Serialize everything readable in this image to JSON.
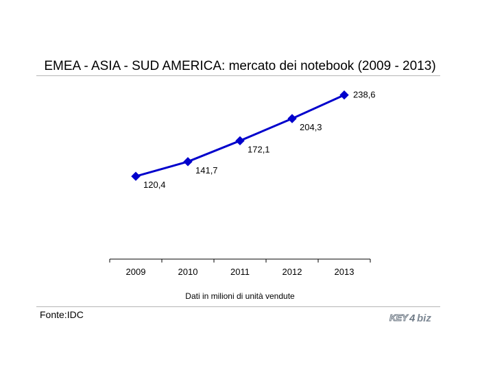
{
  "chart_data": {
    "type": "line",
    "title": "EMEA  - ASIA - SUD AMERICA: mercato dei notebook (2009 - 2013)",
    "xlabel": "",
    "ylabel": "",
    "categories": [
      "2009",
      "2010",
      "2011",
      "2012",
      "2013"
    ],
    "series": [
      {
        "values": [
          120.4,
          141.7,
          172.1,
          204.3,
          238.6
        ],
        "labels": [
          "120,4",
          "141,7",
          "172,1",
          "204,3",
          "238,6"
        ]
      }
    ],
    "ylim": [
      0,
      300
    ],
    "grid": false,
    "legend": "none",
    "marker": "diamond",
    "color": "#0000cc",
    "note": "Dati in milioni di unità vendute"
  },
  "footer": {
    "source": "Fonte:IDC",
    "logo_text": "KEY4biz"
  }
}
